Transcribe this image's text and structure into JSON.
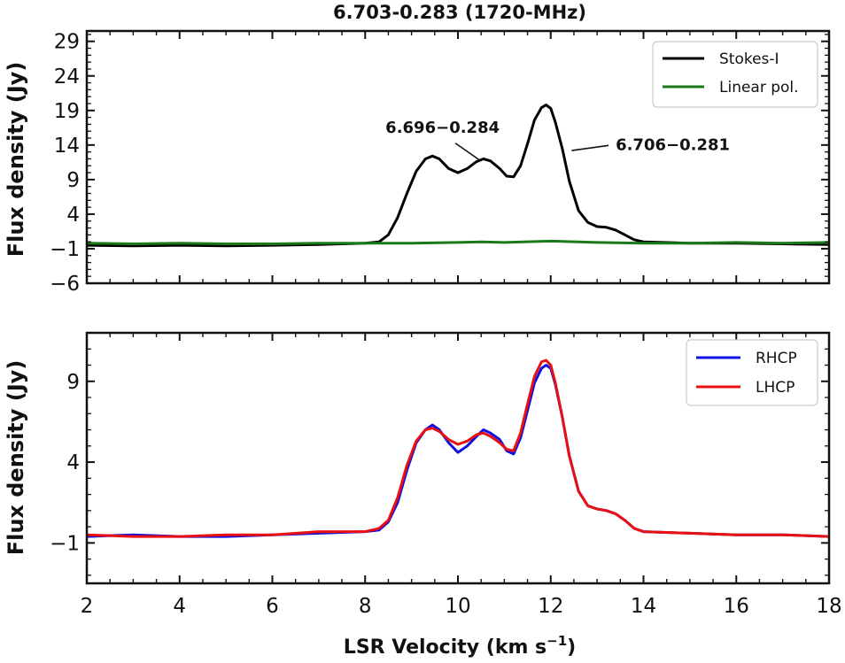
{
  "figure": {
    "title": "6.703-0.283 (1720-MHz)",
    "xlabel_main": "LSR Velocity (km s",
    "xlabel_sup": "−1",
    "xlabel_close": ")"
  },
  "chart_data": [
    {
      "type": "line",
      "title": "6.703-0.283 (1720-MHz)",
      "ylabel": "Flux density (Jy)",
      "xlim": [
        2,
        18
      ],
      "ylim": [
        -6,
        30.5
      ],
      "yticks": [
        -6,
        -1,
        4,
        9,
        14,
        19,
        24,
        29
      ],
      "ytick_labels": [
        "−6",
        "−1",
        "4",
        "9",
        "14",
        "19",
        "24",
        "29"
      ],
      "legend_position": "top-right",
      "series": [
        {
          "name": "Stokes-I",
          "color": "#000000",
          "x": [
            2.0,
            3.0,
            4.0,
            5.0,
            6.0,
            7.0,
            7.5,
            8.0,
            8.3,
            8.5,
            8.7,
            8.9,
            9.1,
            9.3,
            9.45,
            9.6,
            9.8,
            10.0,
            10.2,
            10.4,
            10.55,
            10.7,
            10.9,
            11.05,
            11.2,
            11.35,
            11.5,
            11.65,
            11.8,
            11.9,
            12.0,
            12.1,
            12.25,
            12.4,
            12.6,
            12.8,
            13.0,
            13.2,
            13.4,
            13.6,
            13.8,
            14.0,
            15.0,
            16.0,
            17.0,
            18.0
          ],
          "y": [
            -0.5,
            -0.6,
            -0.5,
            -0.6,
            -0.5,
            -0.4,
            -0.3,
            -0.2,
            0.0,
            1.0,
            3.5,
            7.0,
            10.2,
            12.0,
            12.4,
            12.0,
            10.6,
            10.0,
            10.6,
            11.6,
            12.0,
            11.7,
            10.6,
            9.5,
            9.4,
            11.0,
            14.2,
            17.6,
            19.4,
            19.8,
            19.3,
            17.3,
            13.5,
            8.8,
            4.5,
            2.8,
            2.2,
            2.1,
            1.7,
            1.0,
            0.3,
            0.0,
            -0.2,
            -0.2,
            -0.3,
            -0.4
          ]
        },
        {
          "name": "Linear pol.",
          "color": "#1a7a1a",
          "x": [
            2.0,
            3.0,
            4.0,
            5.0,
            6.0,
            7.0,
            8.0,
            9.0,
            10.0,
            10.5,
            11.0,
            12.0,
            13.0,
            14.0,
            15.0,
            16.0,
            17.0,
            18.0
          ],
          "y": [
            -0.2,
            -0.3,
            -0.2,
            -0.3,
            -0.3,
            -0.2,
            -0.2,
            -0.2,
            -0.1,
            0.0,
            -0.1,
            0.1,
            -0.1,
            -0.2,
            -0.2,
            -0.1,
            -0.2,
            -0.1
          ]
        }
      ],
      "annotations": [
        {
          "text": "6.696−0.284",
          "x": 10.9,
          "y": 15.8,
          "arrow_to": [
            10.45,
            11.9
          ]
        },
        {
          "text": "6.706−0.281",
          "x": 13.4,
          "y": 13.3,
          "arrow_to": [
            12.45,
            13.2
          ]
        }
      ]
    },
    {
      "type": "line",
      "ylabel": "Flux density (Jy)",
      "xlabel": "LSR Velocity (km s−1)",
      "xlim": [
        2,
        18
      ],
      "ylim": [
        -3.5,
        12
      ],
      "xticks": [
        2,
        4,
        6,
        8,
        10,
        12,
        14,
        16,
        18
      ],
      "xtick_labels": [
        "2",
        "4",
        "6",
        "8",
        "10",
        "12",
        "14",
        "16",
        "18"
      ],
      "yticks": [
        -1,
        4,
        9
      ],
      "ytick_labels": [
        "−1",
        "4",
        "9"
      ],
      "legend_position": "top-right",
      "series": [
        {
          "name": "RHCP",
          "color": "#1010e0",
          "x": [
            2.0,
            3.0,
            4.0,
            5.0,
            6.0,
            7.0,
            8.0,
            8.3,
            8.5,
            8.7,
            8.9,
            9.1,
            9.3,
            9.45,
            9.6,
            9.8,
            10.0,
            10.2,
            10.4,
            10.55,
            10.7,
            10.9,
            11.05,
            11.2,
            11.35,
            11.5,
            11.65,
            11.8,
            11.9,
            12.0,
            12.1,
            12.25,
            12.4,
            12.6,
            12.8,
            13.0,
            13.2,
            13.4,
            13.6,
            13.8,
            14.0,
            15.0,
            16.0,
            17.0,
            18.0
          ],
          "y": [
            -0.6,
            -0.5,
            -0.6,
            -0.6,
            -0.5,
            -0.4,
            -0.3,
            -0.2,
            0.3,
            1.5,
            3.5,
            5.2,
            6.0,
            6.3,
            6.0,
            5.2,
            4.6,
            5.0,
            5.6,
            6.0,
            5.8,
            5.4,
            4.7,
            4.5,
            5.5,
            7.2,
            8.9,
            9.8,
            10.0,
            9.8,
            8.8,
            6.8,
            4.4,
            2.2,
            1.3,
            1.1,
            1.0,
            0.8,
            0.4,
            -0.1,
            -0.3,
            -0.4,
            -0.5,
            -0.5,
            -0.6
          ]
        },
        {
          "name": "LHCP",
          "color": "#e81010",
          "x": [
            2.0,
            3.0,
            4.0,
            5.0,
            6.0,
            7.0,
            8.0,
            8.3,
            8.5,
            8.7,
            8.9,
            9.1,
            9.3,
            9.45,
            9.6,
            9.8,
            10.0,
            10.2,
            10.4,
            10.55,
            10.7,
            10.9,
            11.05,
            11.2,
            11.35,
            11.5,
            11.65,
            11.8,
            11.9,
            12.0,
            12.1,
            12.25,
            12.4,
            12.6,
            12.8,
            13.0,
            13.2,
            13.4,
            13.6,
            13.8,
            14.0,
            15.0,
            16.0,
            17.0,
            18.0
          ],
          "y": [
            -0.5,
            -0.6,
            -0.6,
            -0.5,
            -0.5,
            -0.3,
            -0.3,
            -0.1,
            0.4,
            1.8,
            3.8,
            5.3,
            6.0,
            6.1,
            5.9,
            5.4,
            5.1,
            5.3,
            5.7,
            5.8,
            5.6,
            5.2,
            4.8,
            4.7,
            5.8,
            7.6,
            9.3,
            10.2,
            10.3,
            10.0,
            8.9,
            6.8,
            4.4,
            2.2,
            1.3,
            1.1,
            1.0,
            0.8,
            0.4,
            -0.1,
            -0.3,
            -0.4,
            -0.5,
            -0.5,
            -0.6
          ]
        }
      ]
    }
  ]
}
